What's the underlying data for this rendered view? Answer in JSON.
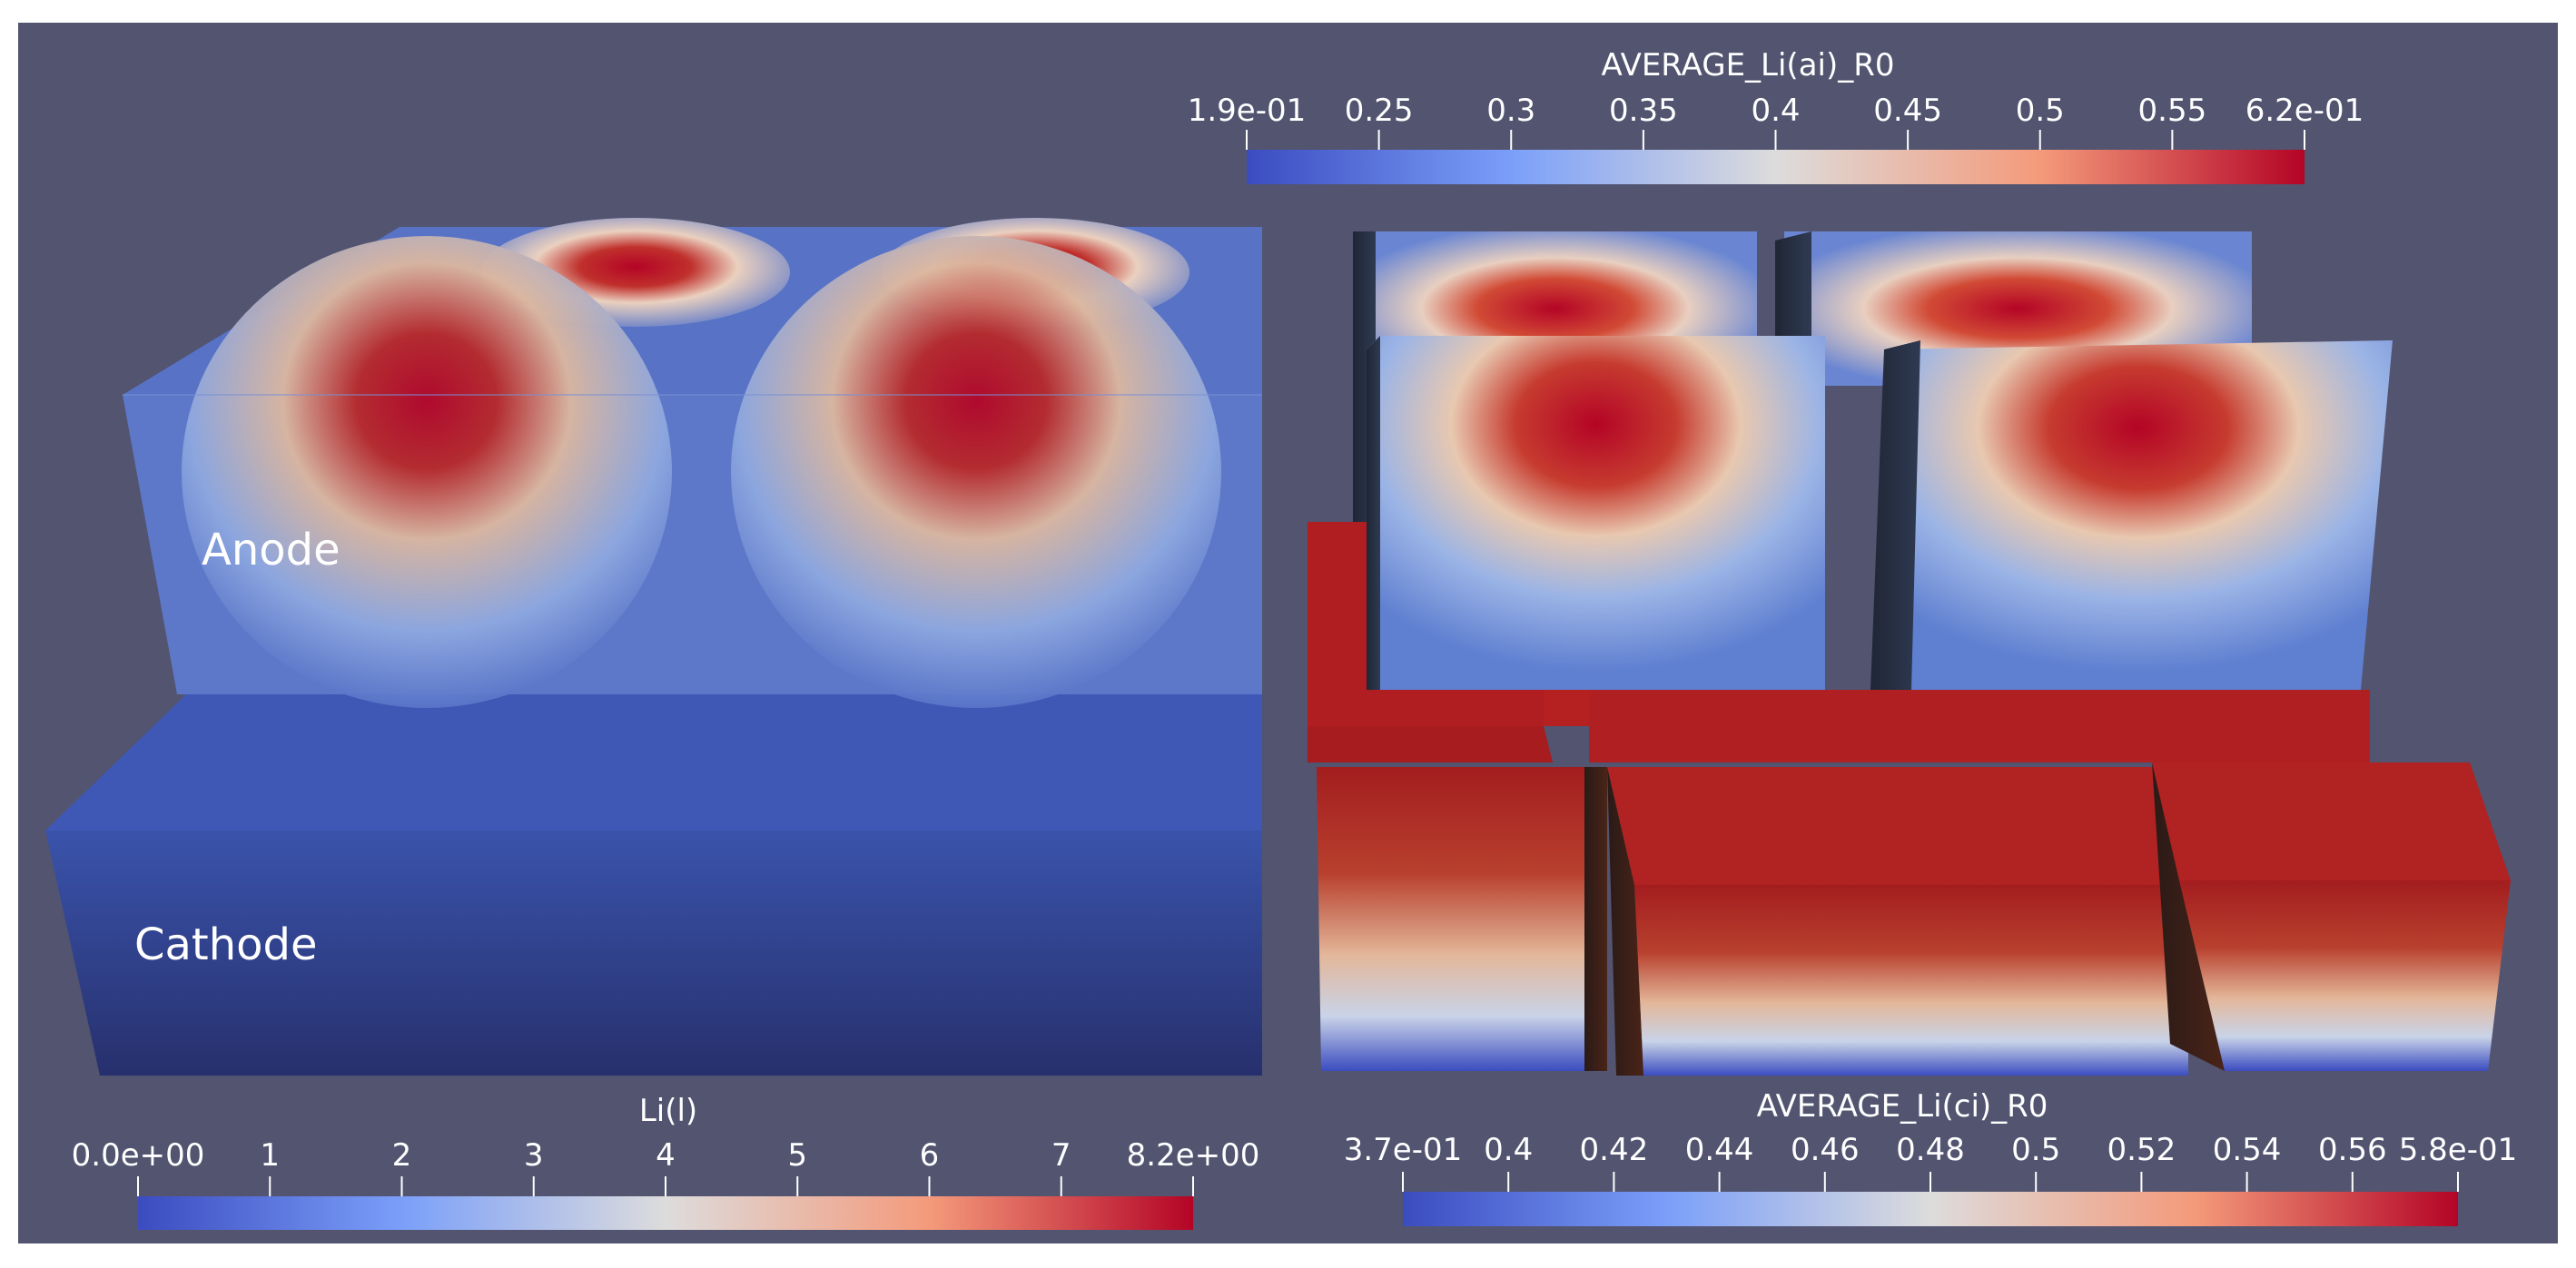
{
  "viewport": {
    "background_color": "#525470"
  },
  "labels": {
    "anode": "Anode",
    "cathode": "Cathode"
  },
  "colorbars": {
    "anode_particles": {
      "title": "AVERAGE_Li(ai)_R0",
      "ticks": [
        "1.9e-01",
        "0.25",
        "0.3",
        "0.35",
        "0.4",
        "0.45",
        "0.5",
        "0.55",
        "6.2e-01"
      ]
    },
    "electrolyte": {
      "title": "Li(l)",
      "ticks": [
        "0.0e+00",
        "1",
        "2",
        "3",
        "4",
        "5",
        "6",
        "7",
        "8.2e+00"
      ]
    },
    "cathode_particles": {
      "title": "AVERAGE_Li(ci)_R0",
      "ticks": [
        "3.7e-01",
        "0.4",
        "0.42",
        "0.44",
        "0.46",
        "0.48",
        "0.5",
        "0.52",
        "0.54",
        "0.56",
        "5.8e-01"
      ]
    }
  },
  "colormap": {
    "low": "#3b4cc0",
    "mid": "#dddddd",
    "high": "#b40426"
  }
}
